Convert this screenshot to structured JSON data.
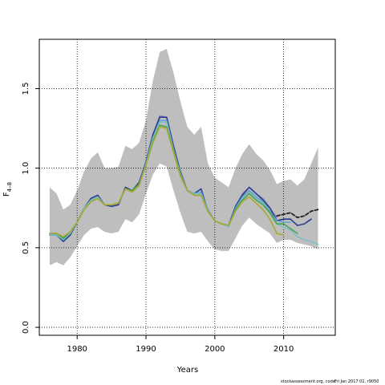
{
  "chart_data": {
    "type": "line",
    "xlabel": "Years",
    "ylabel": "F",
    "ylabel_sub": "4–8",
    "xlim": [
      1974.5,
      2017.5
    ],
    "ylim": [
      -0.05,
      1.81
    ],
    "x_ticks": [
      1980,
      1990,
      2000,
      2010
    ],
    "y_ticks": [
      0.0,
      0.5,
      1.0,
      1.5
    ],
    "x_tick_labels": [
      "1980",
      "1990",
      "2000",
      "2010"
    ],
    "y_tick_labels": [
      "0.0",
      "0.5",
      "1.0",
      "1.5"
    ],
    "grid": true,
    "grid_style": "dotted",
    "band_color": "#bebebe",
    "band": {
      "x": [
        1976,
        1977,
        1978,
        1979,
        1980,
        1981,
        1982,
        1983,
        1984,
        1985,
        1986,
        1987,
        1988,
        1989,
        1990,
        1991,
        1992,
        1993,
        1994,
        1995,
        1996,
        1997,
        1998,
        1999,
        2000,
        2001,
        2002,
        2003,
        2004,
        2005,
        2006,
        2007,
        2008,
        2009,
        2010,
        2011,
        2012,
        2013,
        2014,
        2015
      ],
      "upper": [
        0.88,
        0.84,
        0.74,
        0.77,
        0.86,
        0.98,
        1.06,
        1.1,
        1.0,
        1.0,
        1.01,
        1.14,
        1.12,
        1.16,
        1.3,
        1.55,
        1.73,
        1.75,
        1.6,
        1.42,
        1.26,
        1.21,
        1.26,
        1.03,
        0.94,
        0.91,
        0.88,
        1.0,
        1.09,
        1.15,
        1.09,
        1.05,
        0.99,
        0.9,
        0.92,
        0.93,
        0.89,
        0.93,
        1.03,
        1.13
      ],
      "lower": [
        0.39,
        0.41,
        0.39,
        0.44,
        0.51,
        0.58,
        0.62,
        0.63,
        0.6,
        0.59,
        0.6,
        0.68,
        0.66,
        0.71,
        0.84,
        0.96,
        1.03,
        1.01,
        0.86,
        0.72,
        0.6,
        0.59,
        0.6,
        0.54,
        0.49,
        0.48,
        0.48,
        0.56,
        0.64,
        0.69,
        0.65,
        0.62,
        0.59,
        0.53,
        0.55,
        0.55,
        0.53,
        0.52,
        0.51,
        0.49
      ]
    },
    "series": [
      {
        "color": "#8b7fb8",
        "width": 1.4,
        "dash": "",
        "x": [
          1976,
          1977,
          1978,
          1979,
          1980,
          1981,
          1982,
          1983,
          1984,
          1985,
          1986,
          1987,
          1988,
          1989,
          1990,
          1991,
          1992,
          1993,
          1994,
          1995,
          1996,
          1997,
          1998,
          1999,
          2000,
          2001,
          2002,
          2003,
          2004,
          2005,
          2006,
          2007,
          2008,
          2009
        ],
        "values": [
          0.59,
          0.59,
          0.55,
          0.59,
          0.66,
          0.75,
          0.8,
          0.82,
          0.77,
          0.77,
          0.78,
          0.87,
          0.86,
          0.91,
          1.04,
          1.21,
          1.33,
          1.32,
          1.14,
          0.98,
          0.86,
          0.84,
          0.85,
          0.74,
          0.67,
          0.65,
          0.64,
          0.76,
          0.84,
          0.88,
          0.84,
          0.81,
          0.75,
          0.69
        ]
      },
      {
        "color": "#2a3d8f",
        "width": 1.6,
        "dash": "",
        "x": [
          1976,
          1977,
          1978,
          1979,
          1980,
          1981,
          1982,
          1983,
          1984,
          1985,
          1986,
          1987,
          1988,
          1989,
          1990,
          1991,
          1992,
          1993,
          1994,
          1995,
          1996,
          1997,
          1998,
          1999,
          2000,
          2001,
          2002,
          2003,
          2004,
          2005,
          2006,
          2007,
          2008,
          2009,
          2010,
          2011,
          2012,
          2013,
          2014
        ],
        "values": [
          0.58,
          0.58,
          0.54,
          0.58,
          0.66,
          0.75,
          0.81,
          0.83,
          0.77,
          0.76,
          0.77,
          0.88,
          0.86,
          0.91,
          1.04,
          1.21,
          1.32,
          1.32,
          1.14,
          0.98,
          0.86,
          0.84,
          0.87,
          0.73,
          0.67,
          0.65,
          0.64,
          0.76,
          0.83,
          0.88,
          0.84,
          0.8,
          0.75,
          0.67,
          0.68,
          0.68,
          0.64,
          0.65,
          0.68
        ]
      },
      {
        "color": "#5b9fcf",
        "width": 1.4,
        "dash": "",
        "x": [
          1976,
          1977,
          1978,
          1979,
          1980,
          1981,
          1982,
          1983,
          1984,
          1985,
          1986,
          1987,
          1988,
          1989,
          1990,
          1991,
          1992,
          1993,
          1994,
          1995,
          1996,
          1997,
          1998,
          1999,
          2000,
          2001,
          2002,
          2003,
          2004,
          2005,
          2006,
          2007,
          2008,
          2009,
          2010,
          2011
        ],
        "values": [
          0.58,
          0.58,
          0.56,
          0.59,
          0.66,
          0.75,
          0.8,
          0.82,
          0.77,
          0.77,
          0.78,
          0.87,
          0.86,
          0.9,
          1.03,
          1.19,
          1.3,
          1.3,
          1.12,
          0.97,
          0.86,
          0.84,
          0.85,
          0.74,
          0.67,
          0.65,
          0.64,
          0.75,
          0.82,
          0.86,
          0.82,
          0.79,
          0.73,
          0.67,
          0.66,
          0.66
        ]
      },
      {
        "color": "#76c1c8",
        "width": 1.5,
        "dash": "",
        "x": [
          1976,
          1977,
          1978,
          1979,
          1980,
          1981,
          1982,
          1983,
          1984,
          1985,
          1986,
          1987,
          1988,
          1989,
          1990,
          1991,
          1992,
          1993,
          1994,
          1995,
          1996,
          1997,
          1998,
          1999,
          2000,
          2001,
          2002,
          2003,
          2004,
          2005,
          2006,
          2007,
          2008,
          2009,
          2010,
          2011,
          2012,
          2013,
          2014,
          2015
        ],
        "values": [
          0.58,
          0.58,
          0.55,
          0.59,
          0.66,
          0.75,
          0.8,
          0.82,
          0.77,
          0.77,
          0.78,
          0.87,
          0.86,
          0.9,
          1.03,
          1.19,
          1.29,
          1.29,
          1.12,
          0.97,
          0.86,
          0.84,
          0.84,
          0.73,
          0.67,
          0.65,
          0.63,
          0.74,
          0.81,
          0.85,
          0.81,
          0.78,
          0.72,
          0.65,
          0.63,
          0.61,
          0.57,
          0.55,
          0.54,
          0.52
        ]
      },
      {
        "color": "#4aa24a",
        "width": 1.6,
        "dash": "",
        "x": [
          1976,
          1977,
          1978,
          1979,
          1980,
          1981,
          1982,
          1983,
          1984,
          1985,
          1986,
          1987,
          1988,
          1989,
          1990,
          1991,
          1992,
          1993,
          1994,
          1995,
          1996,
          1997,
          1998,
          1999,
          2000,
          2001,
          2002,
          2003,
          2004,
          2005,
          2006,
          2007,
          2008,
          2009,
          2010,
          2011,
          2012
        ],
        "values": [
          0.59,
          0.59,
          0.56,
          0.6,
          0.66,
          0.74,
          0.79,
          0.81,
          0.77,
          0.77,
          0.78,
          0.87,
          0.86,
          0.9,
          1.02,
          1.17,
          1.27,
          1.26,
          1.11,
          0.96,
          0.86,
          0.83,
          0.83,
          0.73,
          0.67,
          0.65,
          0.64,
          0.74,
          0.8,
          0.84,
          0.8,
          0.77,
          0.72,
          0.65,
          0.65,
          0.62,
          0.59
        ]
      },
      {
        "color": "#a8a832",
        "width": 1.6,
        "dash": "",
        "x": [
          1976,
          1977,
          1978,
          1979,
          1980,
          1981,
          1982,
          1983,
          1984,
          1985,
          1986,
          1987,
          1988,
          1989,
          1990,
          1991,
          1992,
          1993,
          1994,
          1995,
          1996,
          1997,
          1998,
          1999,
          2000,
          2001,
          2002,
          2003,
          2004,
          2005,
          2006,
          2007,
          2008,
          2009,
          2010
        ],
        "values": [
          0.59,
          0.59,
          0.57,
          0.6,
          0.66,
          0.74,
          0.79,
          0.81,
          0.77,
          0.77,
          0.78,
          0.87,
          0.85,
          0.89,
          1.02,
          1.16,
          1.26,
          1.25,
          1.1,
          0.95,
          0.86,
          0.83,
          0.83,
          0.73,
          0.67,
          0.65,
          0.64,
          0.73,
          0.79,
          0.82,
          0.78,
          0.74,
          0.68,
          0.59,
          0.58
        ]
      },
      {
        "color": "#222222",
        "width": 1.8,
        "dash": "4,2.5",
        "x": [
          2009,
          2010,
          2011,
          2012,
          2013,
          2014,
          2015
        ],
        "values": [
          0.7,
          0.71,
          0.72,
          0.69,
          0.7,
          0.73,
          0.74
        ]
      }
    ]
  },
  "footer": {
    "source": "stockassessment.org, code: ",
    "stamp": "Fri Jan 2017 01, r9050"
  }
}
